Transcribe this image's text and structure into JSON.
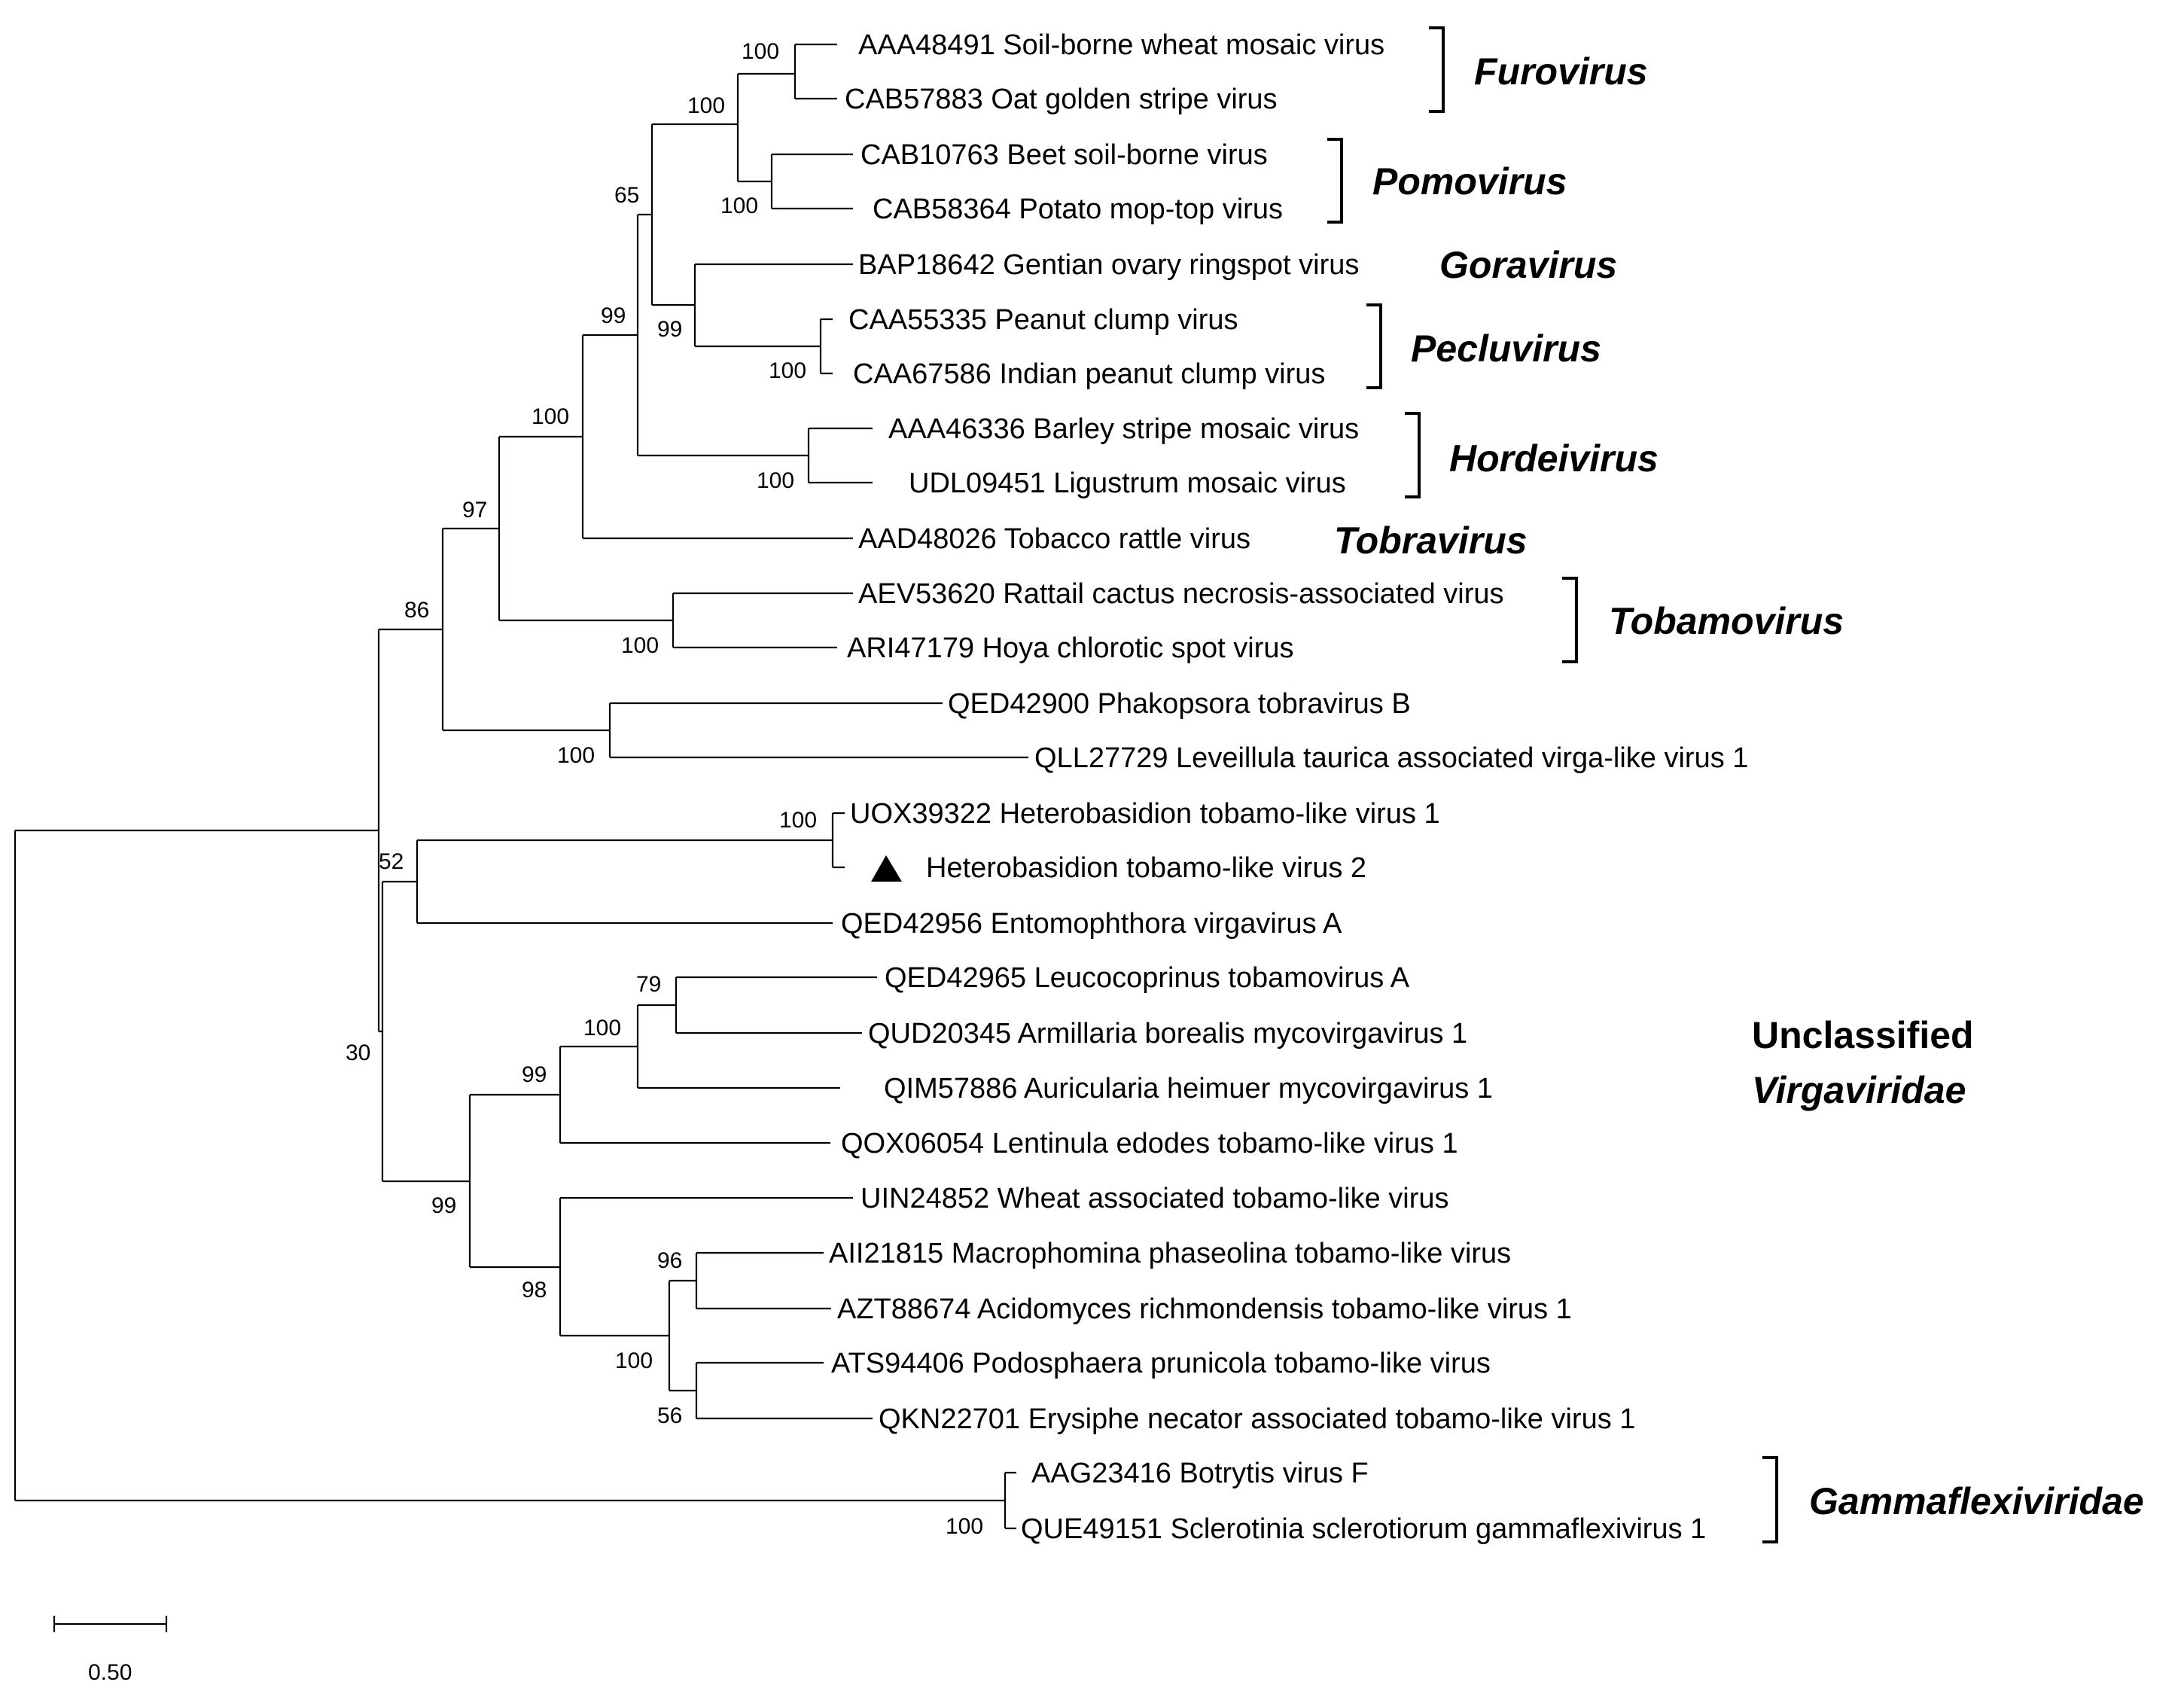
{
  "figure": {
    "type": "phylogenetic-tree",
    "scale_bar_label": "0.50"
  },
  "leaves": [
    "AAA48491 Soil-borne wheat mosaic virus",
    "CAB57883 Oat golden stripe virus",
    "CAB10763 Beet soil-borne virus",
    "CAB58364 Potato mop-top virus",
    "BAP18642 Gentian ovary ringspot virus",
    "CAA55335 Peanut clump virus",
    "CAA67586 Indian peanut clump virus",
    "AAA46336 Barley stripe mosaic virus",
    "UDL09451 Ligustrum mosaic virus",
    "AAD48026 Tobacco rattle virus",
    "AEV53620 Rattail cactus necrosis-associated virus",
    "ARI47179 Hoya chlorotic spot virus",
    "QED42900 Phakopsora tobravirus B",
    "QLL27729 Leveillula taurica associated virga-like virus 1",
    "UOX39322 Heterobasidion tobamo-like virus 1",
    "Heterobasidion tobamo-like virus 2",
    "QED42956 Entomophthora virgavirus A",
    "QED42965 Leucocoprinus tobamovirus A",
    "QUD20345 Armillaria borealis mycovirgavirus 1",
    "QIM57886 Auricularia heimuer mycovirgavirus 1",
    "QOX06054 Lentinula edodes tobamo-like virus 1",
    "UIN24852 Wheat associated tobamo-like virus",
    "AII21815 Macrophomina phaseolina tobamo-like virus",
    "AZT88674 Acidomyces richmondensis tobamo-like virus 1",
    "ATS94406 Podosphaera prunicola tobamo-like virus",
    "QKN22701 Erysiphe necator associated tobamo-like virus 1",
    "AAG23416 Botrytis virus F",
    "QUE49151 Sclerotinia sclerotiorum gammaflexivirus 1"
  ],
  "bootstrap_values": [
    "100",
    "100",
    "100",
    "65",
    "99",
    "100",
    "99",
    "100",
    "100",
    "97",
    "100",
    "86",
    "100",
    "100",
    "52",
    "79",
    "100",
    "99",
    "99",
    "96",
    "100",
    "56",
    "98",
    "30",
    "100"
  ],
  "groups": [
    {
      "name": "Furovirus"
    },
    {
      "name": "Pomovirus"
    },
    {
      "name": "Goravirus"
    },
    {
      "name": "Pecluvirus"
    },
    {
      "name": "Hordeivirus"
    },
    {
      "name": "Tobravirus"
    },
    {
      "name": "Tobamovirus"
    },
    {
      "name": "Unclassified",
      "second_line": "Virgaviridae"
    },
    {
      "name": "Gammaflexiviridae"
    }
  ],
  "marker_icon": "filled-triangle-icon"
}
